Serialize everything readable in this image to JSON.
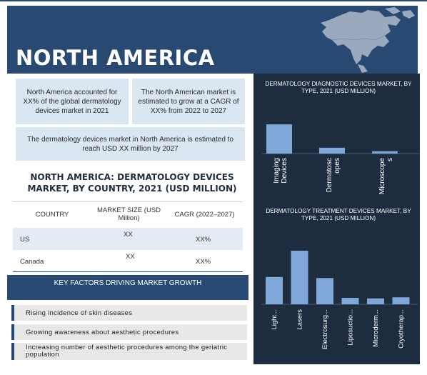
{
  "banner": {
    "title": "NORTH AMERICA"
  },
  "summary": {
    "box1": "North America accounted for XX% of the global dermatology devices market in 2021",
    "box2": "The North American market is estimated to grow at a CAGR of XX% from 2022 to 2027",
    "box3": "The dermatology devices market in North America is estimated to reach USD XX million by 2027"
  },
  "country_table": {
    "title": "NORTH AMERICA: DERMATOLOGY DEVICES MARKET, BY COUNTRY, 2021 (USD MILLION)",
    "headers": [
      "COUNTRY",
      "MARKET SIZE (USD Million)",
      "CAGR (2022–2027)"
    ],
    "rows": [
      {
        "country": "US",
        "size": "XX",
        "cagr": "XX%"
      },
      {
        "country": "Canada",
        "size": "XX",
        "cagr": "XX%"
      }
    ]
  },
  "key_factors": {
    "header": "KEY FACTORS DRIVING MARKET GROWTH",
    "items": [
      "Rising incidence of skin diseases",
      "Growing awareness about aesthetic procedures",
      "Increasing number of aesthetic procedures among the geriatric population"
    ]
  },
  "colors": {
    "navy": "#284a72",
    "panel": "#1e2c40",
    "bar": "#7fa7d8",
    "light_blue": "#dbe6f3"
  },
  "chart_data": [
    {
      "type": "bar",
      "title": "DERMATOLOGY DIAGNOSTIC DEVICES MARKET, BY TYPE, 2021 (USD MILLION)",
      "categories": [
        "Imaging Devices",
        "Dermatoscopes",
        "Microscopes"
      ],
      "tick_labels": [
        "Imaging\nDevices",
        "Dermatosc\nopes",
        "Microscope\ns"
      ],
      "values": [
        100,
        20,
        8
      ],
      "ylim": [
        0,
        110
      ],
      "xlabel": "",
      "ylabel": ""
    },
    {
      "type": "bar",
      "title": "DERMATOLOGY TREATMENT DEVICES MARKET, BY TYPE, 2021 (USD MILLION)",
      "categories": [
        "Light...",
        "Lasers",
        "Electrosurg...",
        "Liposuctio...",
        "Microderm...",
        "Cryotherap..."
      ],
      "tick_labels": [
        "Light...",
        "Lasers",
        "Electrosurg...",
        "Liposuctio...",
        "Microderm...",
        "Cryotherap..."
      ],
      "values": [
        51,
        100,
        49,
        12,
        11,
        13
      ],
      "ylim": [
        0,
        100
      ],
      "xlabel": "",
      "ylabel": ""
    }
  ]
}
